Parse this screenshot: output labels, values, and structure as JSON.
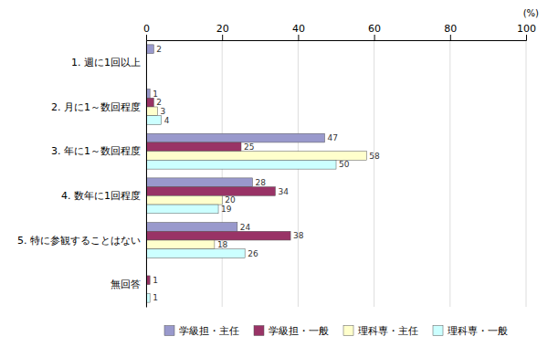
{
  "chart_data": {
    "type": "bar",
    "orientation": "horizontal",
    "xlabel": "(%)",
    "categories": [
      "1. 週に1回以上",
      "2. 月に1～数回程度",
      "3. 年に1～数回程度",
      "4. 数年に1回程度",
      "5. 特に参観することはない",
      "無回答"
    ],
    "series": [
      {
        "name": "学級担・主任",
        "color": "#9999cc",
        "values": [
          2,
          1,
          47,
          28,
          24,
          0
        ]
      },
      {
        "name": "学級担・一般",
        "color": "#993366",
        "values": [
          0,
          2,
          25,
          34,
          38,
          1
        ]
      },
      {
        "name": "理科専・主任",
        "color": "#ffffcc",
        "values": [
          0,
          3,
          58,
          20,
          18,
          0
        ]
      },
      {
        "name": "理科専・一般",
        "color": "#ccffff",
        "values": [
          0,
          4,
          50,
          19,
          26,
          1
        ]
      }
    ],
    "xlim": [
      0,
      100
    ],
    "xticks": [
      0,
      20,
      40,
      60,
      80,
      100
    ],
    "grid": true,
    "data_labels": true,
    "legend": "bottom"
  }
}
